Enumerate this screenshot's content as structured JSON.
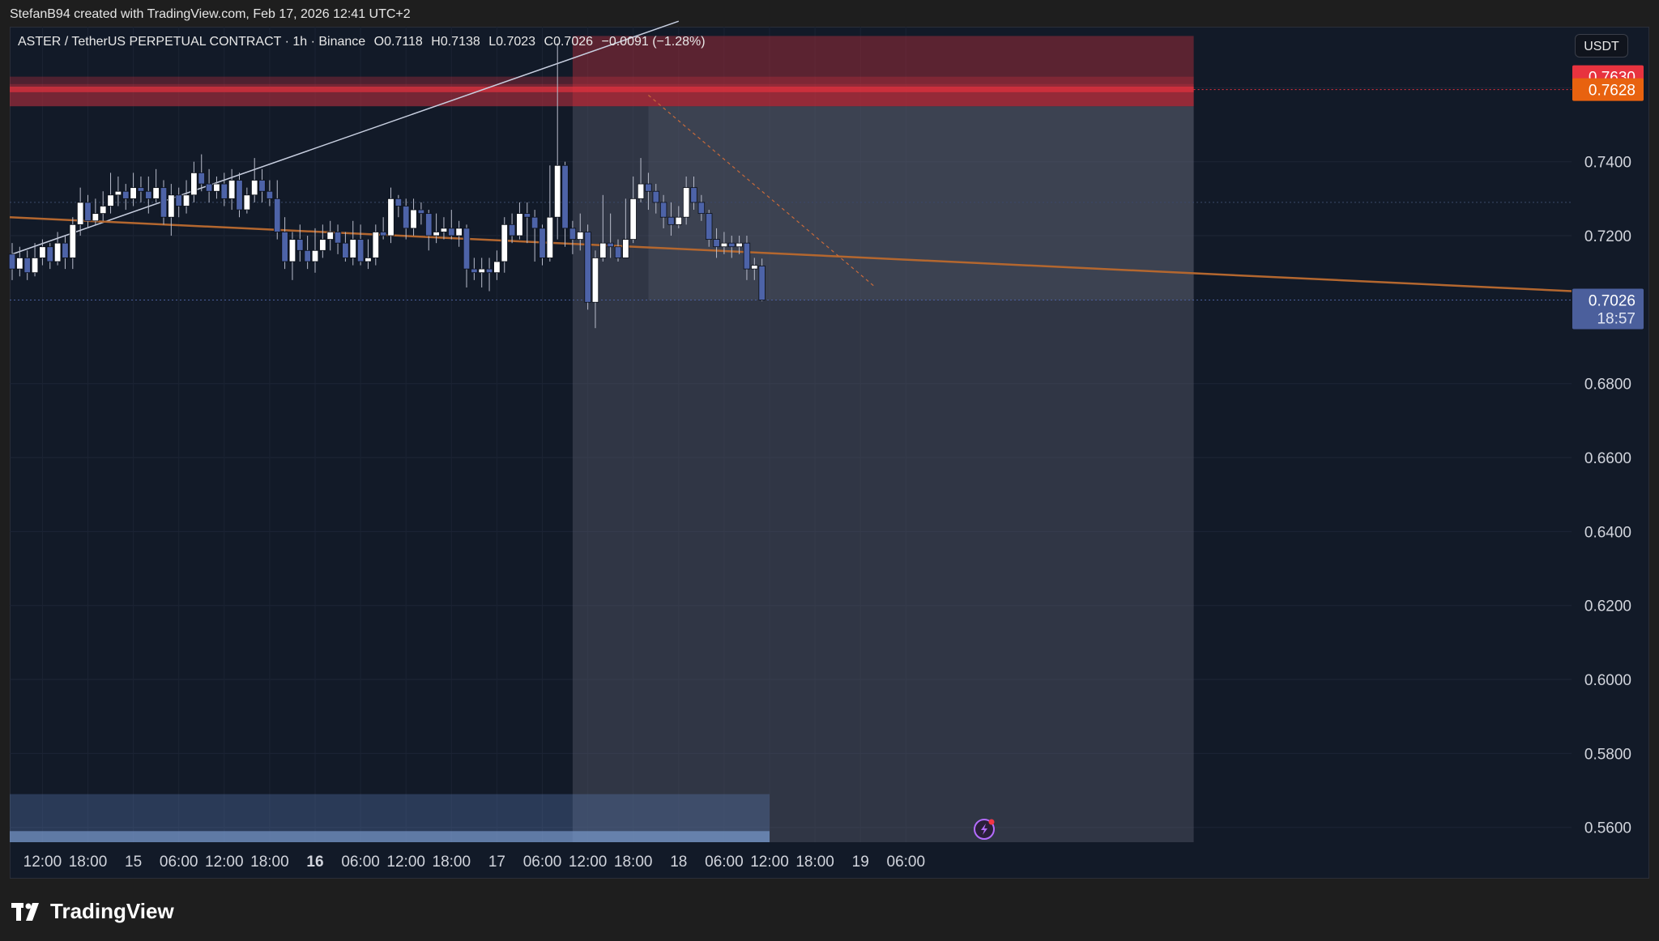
{
  "attribution": "StefanB94 created with TradingView.com, Feb 17, 2026 12:41 UTC+2",
  "legend": {
    "symbol": "ASTER / TetherUS PERPETUAL CONTRACT · 1h · Binance",
    "open": "O0.7118",
    "high": "H0.7138",
    "low": "L0.7023",
    "close": "C0.7026",
    "change": "−0.0091 (−1.28%)"
  },
  "currency_button": "USDT",
  "brand": "TradingView",
  "colors": {
    "background": "#121a28",
    "bull": "#ffffff",
    "bear": "#4d63a8",
    "trendline": "#b4672f",
    "zone_red": "#c0303f",
    "price_label": "#4b5f9c",
    "stop_label": "#e8333f",
    "target_label": "#e8620f"
  },
  "icons": [
    "tradingview-logo-icon",
    "lightning-alert-icon"
  ],
  "chart_data": {
    "type": "candlestick",
    "y_axis": {
      "min": 0.556,
      "max": 0.7765,
      "ticks": [
        "0.7400",
        "0.7200",
        "0.6800",
        "0.6600",
        "0.6400",
        "0.6200",
        "0.6000",
        "0.5800",
        "0.5600"
      ],
      "tick_values": [
        0.74,
        0.72,
        0.68,
        0.66,
        0.64,
        0.62,
        0.6,
        0.58,
        0.56
      ]
    },
    "x_axis": {
      "labels": [
        "12:00",
        "18:00",
        "15",
        "06:00",
        "12:00",
        "18:00",
        "16",
        "06:00",
        "12:00",
        "18:00",
        "17",
        "06:00",
        "12:00",
        "18:00",
        "18",
        "06:00",
        "12:00",
        "18:00",
        "19",
        "06:00"
      ],
      "bold": [
        "16"
      ],
      "label_bar_index": [
        4,
        10,
        16,
        22,
        28,
        34,
        40,
        46,
        52,
        58,
        64,
        70,
        76,
        82,
        88,
        94,
        100,
        106,
        112,
        118
      ]
    },
    "price_labels": [
      {
        "value": "0.7630",
        "price": 0.763,
        "kind": "stop"
      },
      {
        "value": "0.7628",
        "price": 0.7595,
        "kind": "target"
      },
      {
        "value": "0.7026",
        "price": 0.7026,
        "kind": "last",
        "countdown": "18:57"
      }
    ],
    "candles": [
      [
        0.715,
        0.711,
        0.718,
        0.708
      ],
      [
        0.711,
        0.714,
        0.717,
        0.709
      ],
      [
        0.714,
        0.71,
        0.716,
        0.708
      ],
      [
        0.71,
        0.714,
        0.718,
        0.709
      ],
      [
        0.714,
        0.717,
        0.719,
        0.712
      ],
      [
        0.717,
        0.713,
        0.718,
        0.711
      ],
      [
        0.713,
        0.718,
        0.721,
        0.712
      ],
      [
        0.718,
        0.714,
        0.72,
        0.711
      ],
      [
        0.714,
        0.723,
        0.725,
        0.711
      ],
      [
        0.723,
        0.729,
        0.733,
        0.72
      ],
      [
        0.729,
        0.724,
        0.731,
        0.722
      ],
      [
        0.724,
        0.726,
        0.73,
        0.723
      ],
      [
        0.726,
        0.728,
        0.732,
        0.724
      ],
      [
        0.728,
        0.731,
        0.737,
        0.726
      ],
      [
        0.731,
        0.732,
        0.736,
        0.728
      ],
      [
        0.732,
        0.73,
        0.734,
        0.727
      ],
      [
        0.73,
        0.733,
        0.737,
        0.728
      ],
      [
        0.733,
        0.732,
        0.736,
        0.729
      ],
      [
        0.732,
        0.73,
        0.736,
        0.726
      ],
      [
        0.73,
        0.733,
        0.738,
        0.729
      ],
      [
        0.733,
        0.725,
        0.735,
        0.723
      ],
      [
        0.725,
        0.731,
        0.734,
        0.72
      ],
      [
        0.731,
        0.728,
        0.733,
        0.725
      ],
      [
        0.728,
        0.731,
        0.735,
        0.726
      ],
      [
        0.731,
        0.737,
        0.74,
        0.729
      ],
      [
        0.737,
        0.734,
        0.742,
        0.732
      ],
      [
        0.734,
        0.732,
        0.738,
        0.729
      ],
      [
        0.732,
        0.734,
        0.736,
        0.73
      ],
      [
        0.734,
        0.73,
        0.737,
        0.728
      ],
      [
        0.73,
        0.735,
        0.738,
        0.727
      ],
      [
        0.735,
        0.727,
        0.737,
        0.725
      ],
      [
        0.727,
        0.731,
        0.733,
        0.726
      ],
      [
        0.731,
        0.735,
        0.741,
        0.729
      ],
      [
        0.735,
        0.732,
        0.738,
        0.729
      ],
      [
        0.732,
        0.73,
        0.735,
        0.728
      ],
      [
        0.73,
        0.721,
        0.735,
        0.719
      ],
      [
        0.721,
        0.713,
        0.725,
        0.711
      ],
      [
        0.713,
        0.719,
        0.721,
        0.708
      ],
      [
        0.719,
        0.716,
        0.723,
        0.713
      ],
      [
        0.716,
        0.713,
        0.72,
        0.711
      ],
      [
        0.713,
        0.716,
        0.722,
        0.71
      ],
      [
        0.716,
        0.719,
        0.723,
        0.714
      ],
      [
        0.719,
        0.721,
        0.724,
        0.716
      ],
      [
        0.721,
        0.718,
        0.723,
        0.715
      ],
      [
        0.718,
        0.714,
        0.721,
        0.713
      ],
      [
        0.714,
        0.719,
        0.724,
        0.712
      ],
      [
        0.719,
        0.713,
        0.723,
        0.712
      ],
      [
        0.713,
        0.714,
        0.719,
        0.711
      ],
      [
        0.714,
        0.721,
        0.723,
        0.712
      ],
      [
        0.721,
        0.72,
        0.725,
        0.719
      ],
      [
        0.72,
        0.73,
        0.733,
        0.718
      ],
      [
        0.73,
        0.728,
        0.731,
        0.725
      ],
      [
        0.728,
        0.722,
        0.73,
        0.719
      ],
      [
        0.722,
        0.727,
        0.73,
        0.72
      ],
      [
        0.727,
        0.726,
        0.729,
        0.723
      ],
      [
        0.726,
        0.72,
        0.727,
        0.716
      ],
      [
        0.72,
        0.721,
        0.726,
        0.718
      ],
      [
        0.721,
        0.722,
        0.725,
        0.719
      ],
      [
        0.722,
        0.72,
        0.727,
        0.719
      ],
      [
        0.72,
        0.722,
        0.724,
        0.717
      ],
      [
        0.722,
        0.711,
        0.723,
        0.706
      ],
      [
        0.711,
        0.71,
        0.714,
        0.708
      ],
      [
        0.71,
        0.711,
        0.714,
        0.706
      ],
      [
        0.711,
        0.71,
        0.714,
        0.705
      ],
      [
        0.71,
        0.713,
        0.716,
        0.708
      ],
      [
        0.713,
        0.723,
        0.725,
        0.71
      ],
      [
        0.723,
        0.72,
        0.726,
        0.718
      ],
      [
        0.72,
        0.726,
        0.729,
        0.719
      ],
      [
        0.726,
        0.725,
        0.729,
        0.718
      ],
      [
        0.725,
        0.722,
        0.727,
        0.713
      ],
      [
        0.722,
        0.714,
        0.723,
        0.712
      ],
      [
        0.714,
        0.725,
        0.739,
        0.713
      ],
      [
        0.725,
        0.739,
        0.772,
        0.719
      ],
      [
        0.739,
        0.722,
        0.74,
        0.717
      ],
      [
        0.722,
        0.719,
        0.724,
        0.715
      ],
      [
        0.719,
        0.721,
        0.726,
        0.716
      ],
      [
        0.721,
        0.702,
        0.723,
        0.7
      ],
      [
        0.702,
        0.714,
        0.716,
        0.695
      ],
      [
        0.714,
        0.718,
        0.731,
        0.713
      ],
      [
        0.718,
        0.717,
        0.726,
        0.714
      ],
      [
        0.717,
        0.714,
        0.719,
        0.713
      ],
      [
        0.714,
        0.719,
        0.73,
        0.714
      ],
      [
        0.719,
        0.73,
        0.736,
        0.718
      ],
      [
        0.73,
        0.734,
        0.741,
        0.729
      ],
      [
        0.734,
        0.732,
        0.737,
        0.727
      ],
      [
        0.732,
        0.729,
        0.734,
        0.726
      ],
      [
        0.729,
        0.725,
        0.731,
        0.722
      ],
      [
        0.725,
        0.723,
        0.729,
        0.72
      ],
      [
        0.723,
        0.725,
        0.728,
        0.722
      ],
      [
        0.725,
        0.733,
        0.736,
        0.723
      ],
      [
        0.733,
        0.729,
        0.736,
        0.727
      ],
      [
        0.729,
        0.726,
        0.731,
        0.724
      ],
      [
        0.726,
        0.719,
        0.727,
        0.717
      ],
      [
        0.719,
        0.717,
        0.722,
        0.714
      ],
      [
        0.717,
        0.718,
        0.721,
        0.715
      ],
      [
        0.718,
        0.717,
        0.72,
        0.714
      ],
      [
        0.717,
        0.718,
        0.72,
        0.715
      ],
      [
        0.718,
        0.711,
        0.72,
        0.708
      ],
      [
        0.711,
        0.712,
        0.714,
        0.708
      ],
      [
        0.7118,
        0.7026,
        0.7138,
        0.7023
      ]
    ],
    "drawings": {
      "resistance_zone": {
        "from_bar": 0,
        "to_bar": 74,
        "top": 0.761,
        "bottom": 0.755
      },
      "short_position": {
        "from_bar": 74,
        "to_bar": 156,
        "entry": 0.755,
        "stop": 0.763,
        "target": 0.556
      },
      "trendline_orange": {
        "from_bar": 0,
        "to_bar": 184,
        "start": 0.725,
        "end": 0.705
      },
      "trendline_white": {
        "from_bar": 0,
        "to_bar": 88,
        "start": 0.715,
        "end": 0.778
      },
      "dashed_line": {
        "from_bar": 84,
        "to_bar": 114,
        "start": 0.758,
        "end": 0.706
      },
      "volume_box": {
        "from_bar": 0,
        "to_bar": 100,
        "top": 0.569,
        "bottom": 0.556
      }
    }
  }
}
